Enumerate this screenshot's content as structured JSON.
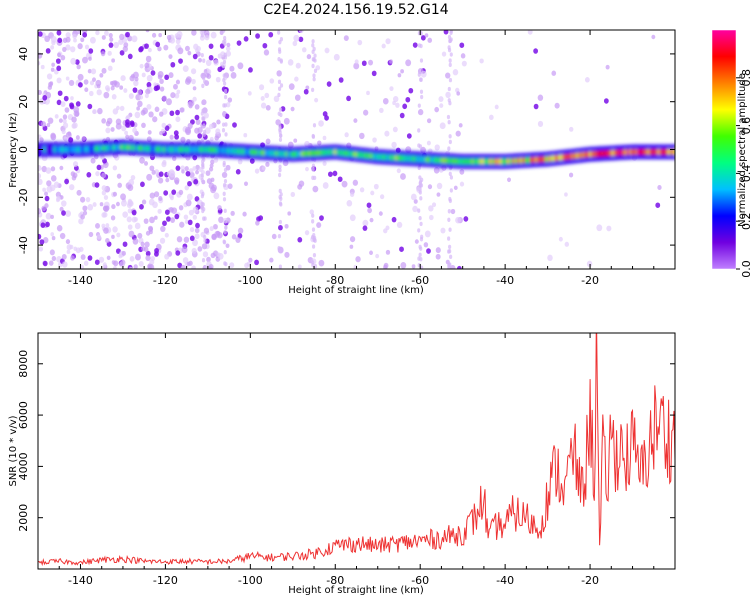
{
  "figure": {
    "title": "C2E4.2024.156.19.52.G14"
  },
  "chart_data": [
    {
      "type": "heatmap",
      "xlabel": "Height of straight line (km)",
      "ylabel": "Frequency (Hz)",
      "xlim": [
        -150,
        0
      ],
      "ylim": [
        -50,
        50
      ],
      "xticks": [
        -140,
        -120,
        -100,
        -80,
        -60,
        -40,
        -20
      ],
      "yticks": [
        -40,
        -20,
        0,
        20,
        40
      ],
      "colorbar": {
        "label": "Normalized spectral amplitude",
        "range": [
          0,
          1
        ],
        "ticks": [
          "0.0",
          "0.2",
          "0.4",
          "0.6",
          "0.8"
        ],
        "colormap": [
          "#c080ff",
          "#7000e0",
          "#0000ff",
          "#00c0ff",
          "#00ff80",
          "#40ff00",
          "#ffff00",
          "#ff8000",
          "#ff0000",
          "#ff00a0"
        ]
      },
      "ridge_frequency": {
        "height_km": [
          -150,
          -140,
          -130,
          -120,
          -110,
          -100,
          -90,
          -80,
          -70,
          -60,
          -50,
          -40,
          -30,
          -20,
          -10,
          0
        ],
        "frequency_hz": [
          0,
          0,
          1,
          0,
          0,
          -1,
          -2,
          -1,
          -3,
          -4,
          -5,
          -5,
          -4,
          -2,
          -1,
          -1
        ]
      },
      "ridge_amplitude": {
        "height_km": [
          -150,
          -140,
          -130,
          -120,
          -110,
          -100,
          -90,
          -80,
          -70,
          -60,
          -50,
          -40,
          -30,
          -20,
          -10,
          0
        ],
        "value": [
          0.25,
          0.3,
          0.45,
          0.4,
          0.4,
          0.45,
          0.45,
          0.5,
          0.5,
          0.45,
          0.55,
          0.6,
          0.75,
          0.8,
          0.85,
          0.8
        ]
      }
    },
    {
      "type": "line",
      "xlabel": "Height of straight line (km)",
      "ylabel": "SNR (10 * v/v)",
      "xlim": [
        -150,
        0
      ],
      "ylim": [
        0,
        9200
      ],
      "xticks": [
        -140,
        -120,
        -100,
        -80,
        -60,
        -40,
        -20
      ],
      "yticks": [
        2000,
        4000,
        6000,
        8000
      ],
      "color": "#ee3333",
      "x": [
        -150,
        -145,
        -140,
        -135,
        -130,
        -125,
        -120,
        -115,
        -110,
        -105,
        -100,
        -95,
        -90,
        -85,
        -80,
        -75,
        -70,
        -65,
        -60,
        -55,
        -50,
        -47,
        -45,
        -44,
        -42,
        -40,
        -38,
        -35,
        -32,
        -30,
        -28,
        -26,
        -24,
        -22,
        -21,
        -20,
        -19,
        -18.5,
        -17.8,
        -17,
        -16,
        -15,
        -14,
        -13,
        -12,
        -10,
        -8,
        -6,
        -4,
        -2,
        0
      ],
      "y": [
        250,
        300,
        250,
        350,
        400,
        300,
        280,
        300,
        280,
        300,
        500,
        450,
        500,
        600,
        900,
        1000,
        900,
        1000,
        1100,
        1200,
        1400,
        2000,
        2800,
        1200,
        1700,
        1700,
        2200,
        2000,
        1500,
        2800,
        4000,
        3000,
        4600,
        3000,
        4000,
        6100,
        3500,
        9200,
        500,
        4500,
        3200,
        5300,
        4200,
        5200,
        4100,
        4800,
        3600,
        4900,
        5800,
        5200,
        5100
      ]
    }
  ]
}
